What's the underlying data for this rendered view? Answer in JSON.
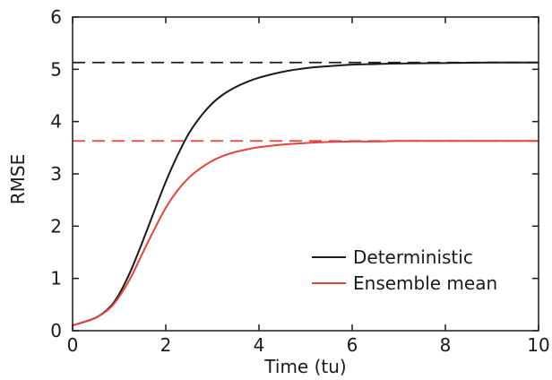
{
  "chart_data": {
    "type": "line",
    "xlabel": "Time (tu)",
    "ylabel": "RMSE",
    "xlim": [
      0,
      10
    ],
    "ylim": [
      0,
      6
    ],
    "xticks": [
      0,
      2,
      4,
      6,
      8,
      10
    ],
    "yticks": [
      0,
      1,
      2,
      3,
      4,
      5,
      6
    ],
    "grid": false,
    "legend_position": "bottom-right",
    "series": [
      {
        "name": "Deterministic",
        "color": "#1a1a1a",
        "x": [
          0,
          0.5,
          0.8,
          1.0,
          1.25,
          1.5,
          1.75,
          2.0,
          2.25,
          2.5,
          2.75,
          3.0,
          3.25,
          3.5,
          3.75,
          4.0,
          4.5,
          5.0,
          5.5,
          6.0,
          6.5,
          7.0,
          8.0,
          9.0,
          10.0
        ],
        "y": [
          0.1,
          0.25,
          0.45,
          0.7,
          1.15,
          1.7,
          2.28,
          2.85,
          3.35,
          3.78,
          4.1,
          4.35,
          4.53,
          4.66,
          4.76,
          4.84,
          4.95,
          5.02,
          5.06,
          5.09,
          5.1,
          5.11,
          5.12,
          5.13,
          5.13
        ]
      },
      {
        "name": "Ensemble mean",
        "color": "#e8423f",
        "x": [
          0,
          0.5,
          0.8,
          1.0,
          1.25,
          1.5,
          1.75,
          2.0,
          2.25,
          2.5,
          2.75,
          3.0,
          3.25,
          3.5,
          3.75,
          4.0,
          4.5,
          5.0,
          5.5,
          6.0,
          6.5,
          7.0,
          8.0,
          9.0,
          10.0
        ],
        "y": [
          0.1,
          0.25,
          0.43,
          0.65,
          1.02,
          1.48,
          1.93,
          2.35,
          2.68,
          2.93,
          3.11,
          3.25,
          3.35,
          3.42,
          3.47,
          3.51,
          3.56,
          3.59,
          3.61,
          3.62,
          3.62,
          3.63,
          3.63,
          3.63,
          3.63
        ]
      }
    ],
    "reference_lines": [
      {
        "y": 5.13,
        "color": "#1a1a1a",
        "style": "dashed"
      },
      {
        "y": 3.63,
        "color": "#e8423f",
        "style": "dashed"
      }
    ]
  }
}
